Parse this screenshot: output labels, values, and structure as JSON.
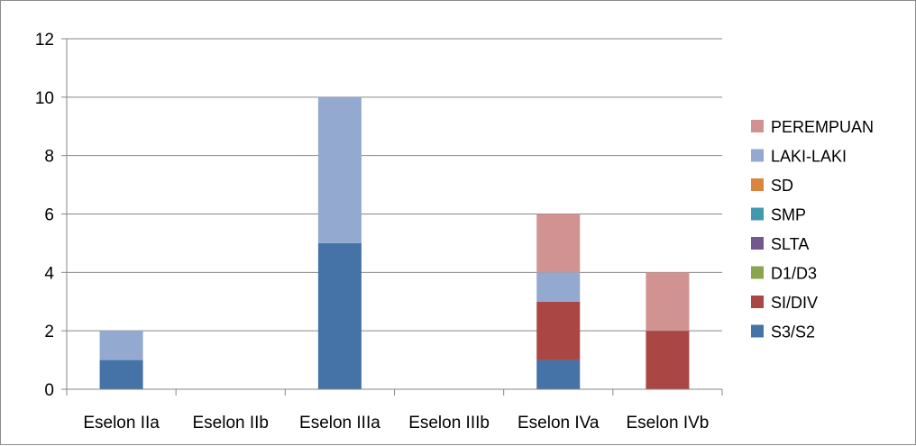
{
  "chart_data": {
    "type": "bar",
    "stacked": true,
    "title": "",
    "xlabel": "",
    "ylabel": "",
    "ylim": [
      0,
      12
    ],
    "yticks": [
      "0",
      "2",
      "4",
      "6",
      "8",
      "10",
      "12"
    ],
    "grid": true,
    "legend_position": "right",
    "categories": [
      "Eselon IIa",
      "Eselon IIb",
      "Eselon IIIa",
      "Eselon IIIb",
      "Eselon IVa",
      "Eselon IVb"
    ],
    "series": [
      {
        "name": "S3/S2",
        "color": "#4572a7",
        "values": [
          1,
          0,
          5,
          0,
          1,
          0
        ]
      },
      {
        "name": "SI/DIV",
        "color": "#aa4643",
        "values": [
          0,
          0,
          0,
          0,
          2,
          2
        ]
      },
      {
        "name": "D1/D3",
        "color": "#89a54e",
        "values": [
          0,
          0,
          0,
          0,
          0,
          0
        ]
      },
      {
        "name": "SLTA",
        "color": "#71588f",
        "values": [
          0,
          0,
          0,
          0,
          0,
          0
        ]
      },
      {
        "name": "SMP",
        "color": "#4198af",
        "values": [
          0,
          0,
          0,
          0,
          0,
          0
        ]
      },
      {
        "name": "SD",
        "color": "#db843d",
        "values": [
          0,
          0,
          0,
          0,
          0,
          0
        ]
      },
      {
        "name": "LAKI-LAKI",
        "color": "#93a9cf",
        "values": [
          1,
          0,
          5,
          0,
          1,
          0
        ]
      },
      {
        "name": "PEREMPUAN",
        "color": "#d19392",
        "values": [
          0,
          0,
          0,
          0,
          2,
          2
        ]
      }
    ],
    "legend_order": [
      "PEREMPUAN",
      "LAKI-LAKI",
      "SD",
      "SMP",
      "SLTA",
      "D1/D3",
      "SI/DIV",
      "S3/S2"
    ]
  }
}
